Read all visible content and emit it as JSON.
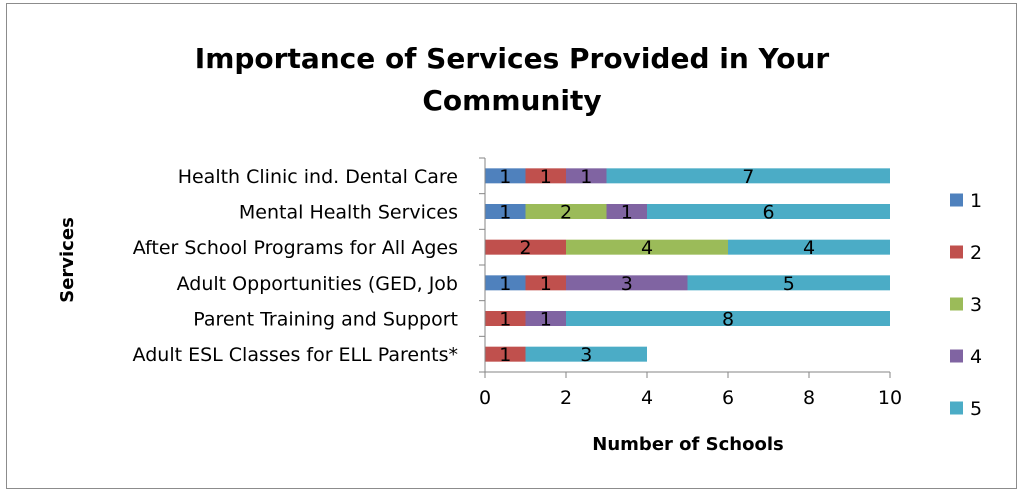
{
  "chart_data": {
    "type": "bar",
    "orientation": "horizontal",
    "stacked": true,
    "title_lines": [
      "Importance of Services Provided in Your",
      "Community"
    ],
    "xlabel": "Number of Schools",
    "ylabel": "Services",
    "xlim": [
      0,
      10
    ],
    "xticks": [
      "0",
      "2",
      "4",
      "6",
      "8",
      "10"
    ],
    "grid": false,
    "legend_position": "right",
    "categories": [
      "Health Clinic ind. Dental Care",
      "Mental Health Services",
      "After School Programs for All Ages",
      "Adult Opportunities (GED, Job",
      "Parent Training and Support",
      "Adult ESL Classes for ELL Parents*"
    ],
    "series": [
      {
        "name": "1",
        "color": "#4f81bd",
        "values": [
          1,
          1,
          0,
          1,
          0,
          0
        ]
      },
      {
        "name": "2",
        "color": "#c0504d",
        "values": [
          1,
          0,
          2,
          1,
          1,
          1
        ]
      },
      {
        "name": "3",
        "color": "#9bbb59",
        "values": [
          0,
          2,
          4,
          0,
          0,
          0
        ]
      },
      {
        "name": "4",
        "color": "#8064a2",
        "values": [
          1,
          1,
          0,
          3,
          1,
          0
        ]
      },
      {
        "name": "5",
        "color": "#4bacc6",
        "values": [
          7,
          6,
          4,
          5,
          8,
          3
        ]
      }
    ]
  }
}
